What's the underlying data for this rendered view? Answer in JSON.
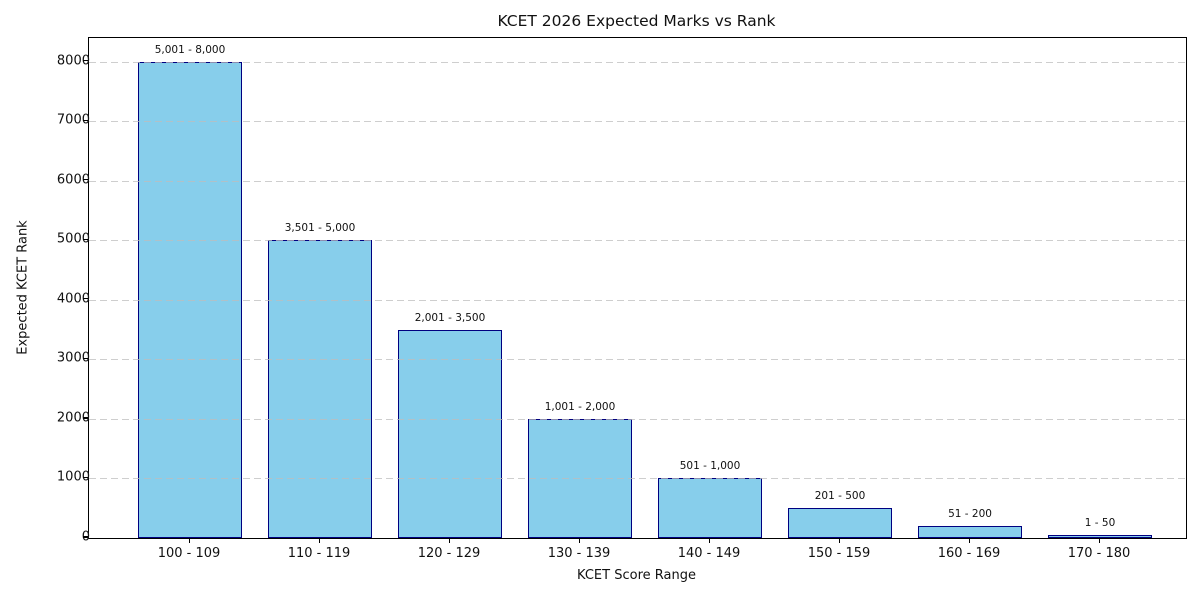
{
  "chart_data": {
    "type": "bar",
    "title": "KCET 2026 Expected Marks vs Rank",
    "xlabel": "KCET Score Range",
    "ylabel": "Expected KCET Rank",
    "categories": [
      "100 - 109",
      "110 - 119",
      "120 - 129",
      "130 - 139",
      "140 - 149",
      "150 - 159",
      "160 - 169",
      "170 - 180"
    ],
    "values": [
      8000,
      5000,
      3500,
      2000,
      1000,
      500,
      200,
      50
    ],
    "bar_labels": [
      "5,001 - 8,000",
      "3,501 - 5,000",
      "2,001 - 3,500",
      "1,001 - 2,000",
      "501 - 1,000",
      "201 - 500",
      "51 - 200",
      "1 - 50"
    ],
    "ylim": [
      0,
      8400
    ],
    "yticks": [
      0,
      1000,
      2000,
      3000,
      4000,
      5000,
      6000,
      7000,
      8000
    ],
    "grid": "horizontal-dashed-over-bars",
    "legend": "none",
    "colors": {
      "bar_fill": "#87CEEB",
      "bar_edge": "#000080",
      "grid_line": "#bdbdbd",
      "spine": "#000000",
      "text": "#111111",
      "background": "#ffffff"
    }
  }
}
